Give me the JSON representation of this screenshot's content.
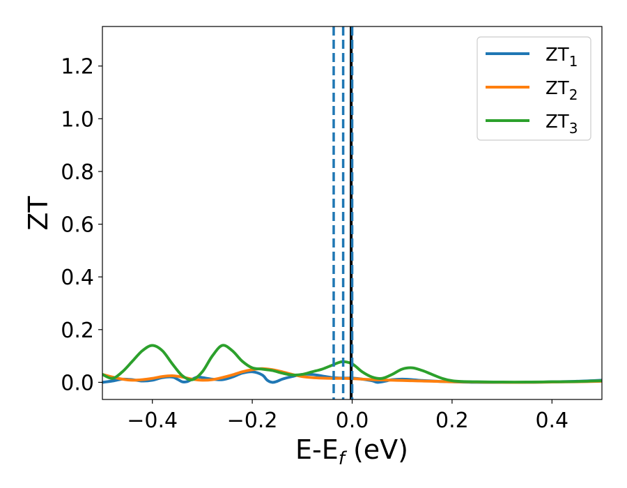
{
  "chart_data": {
    "type": "line",
    "xlabel": "E-E",
    "xlabel_sub": "f",
    "xlabel_unit": " (eV)",
    "ylabel": "ZT",
    "xlim": [
      -0.5,
      0.5
    ],
    "ylim": [
      -0.065,
      1.35
    ],
    "xticks": [
      -0.4,
      -0.2,
      0.0,
      0.2,
      0.4
    ],
    "xtick_labels": [
      "−0.4",
      "−0.2",
      "0.0",
      "0.2",
      "0.4"
    ],
    "yticks": [
      0.0,
      0.2,
      0.4,
      0.6,
      0.8,
      1.0,
      1.2
    ],
    "ytick_labels": [
      "0.0",
      "0.2",
      "0.4",
      "0.6",
      "0.8",
      "1.0",
      "1.2"
    ],
    "grid": false,
    "legend_position": "top-right",
    "series": [
      {
        "name": "ZT",
        "name_sub": "1",
        "color": "#1f77b4",
        "x": [
          -0.5,
          -0.48,
          -0.46,
          -0.44,
          -0.42,
          -0.4,
          -0.38,
          -0.36,
          -0.35,
          -0.34,
          -0.33,
          -0.32,
          -0.31,
          -0.3,
          -0.28,
          -0.26,
          -0.24,
          -0.22,
          -0.2,
          -0.18,
          -0.17,
          -0.16,
          -0.15,
          -0.14,
          -0.12,
          -0.1,
          -0.08,
          -0.06,
          -0.04,
          -0.02,
          0.0,
          0.02,
          0.04,
          0.05,
          0.06,
          0.07,
          0.08,
          0.1,
          0.12,
          0.14,
          0.16,
          0.18,
          0.2,
          0.25,
          0.3,
          0.35,
          0.4,
          0.45,
          0.5
        ],
        "y": [
          0.0,
          0.005,
          0.012,
          0.01,
          0.005,
          0.008,
          0.018,
          0.02,
          0.012,
          0.002,
          0.003,
          0.012,
          0.02,
          0.018,
          0.012,
          0.01,
          0.02,
          0.035,
          0.04,
          0.028,
          0.008,
          0.0,
          0.004,
          0.012,
          0.022,
          0.03,
          0.03,
          0.024,
          0.018,
          0.016,
          0.016,
          0.012,
          0.006,
          0.0,
          0.002,
          0.006,
          0.01,
          0.012,
          0.01,
          0.007,
          0.005,
          0.003,
          0.002,
          0.0,
          0.0,
          0.0,
          0.002,
          0.004,
          0.008
        ]
      },
      {
        "name": "ZT",
        "name_sub": "2",
        "color": "#ff7f0e",
        "x": [
          -0.5,
          -0.48,
          -0.46,
          -0.44,
          -0.42,
          -0.4,
          -0.38,
          -0.36,
          -0.34,
          -0.32,
          -0.3,
          -0.28,
          -0.26,
          -0.24,
          -0.22,
          -0.2,
          -0.18,
          -0.16,
          -0.14,
          -0.12,
          -0.1,
          -0.08,
          -0.06,
          -0.04,
          -0.02,
          0.0,
          0.02,
          0.04,
          0.06,
          0.08,
          0.1,
          0.12,
          0.14,
          0.16,
          0.18,
          0.2,
          0.25,
          0.3,
          0.35,
          0.4,
          0.45,
          0.5
        ],
        "y": [
          0.03,
          0.02,
          0.012,
          0.008,
          0.01,
          0.015,
          0.022,
          0.025,
          0.02,
          0.012,
          0.008,
          0.01,
          0.018,
          0.028,
          0.04,
          0.048,
          0.052,
          0.048,
          0.04,
          0.03,
          0.022,
          0.018,
          0.016,
          0.015,
          0.015,
          0.014,
          0.012,
          0.01,
          0.009,
          0.008,
          0.007,
          0.006,
          0.005,
          0.004,
          0.003,
          0.002,
          0.001,
          0.0,
          0.0,
          0.001,
          0.002,
          0.004
        ]
      },
      {
        "name": "ZT",
        "name_sub": "3",
        "color": "#2ca02c",
        "x": [
          -0.5,
          -0.48,
          -0.46,
          -0.44,
          -0.42,
          -0.4,
          -0.38,
          -0.36,
          -0.34,
          -0.32,
          -0.3,
          -0.28,
          -0.26,
          -0.24,
          -0.22,
          -0.2,
          -0.18,
          -0.16,
          -0.14,
          -0.12,
          -0.1,
          -0.08,
          -0.06,
          -0.04,
          -0.02,
          0.0,
          0.02,
          0.04,
          0.06,
          0.08,
          0.1,
          0.12,
          0.14,
          0.16,
          0.18,
          0.2,
          0.22,
          0.25,
          0.3,
          0.35,
          0.4,
          0.45,
          0.5
        ],
        "y": [
          0.03,
          0.015,
          0.04,
          0.08,
          0.12,
          0.14,
          0.12,
          0.07,
          0.025,
          0.01,
          0.04,
          0.1,
          0.14,
          0.12,
          0.08,
          0.055,
          0.05,
          0.045,
          0.035,
          0.028,
          0.03,
          0.04,
          0.05,
          0.065,
          0.078,
          0.07,
          0.04,
          0.02,
          0.015,
          0.03,
          0.05,
          0.055,
          0.045,
          0.03,
          0.015,
          0.006,
          0.003,
          0.002,
          0.001,
          0.001,
          0.002,
          0.003,
          0.006
        ]
      }
    ],
    "vlines": [
      {
        "x": -0.037,
        "color": "#1f77b4",
        "style": "dashed"
      },
      {
        "x": -0.018,
        "color": "#1f77b4",
        "style": "dashed"
      },
      {
        "x": -0.002,
        "color": "#000000",
        "style": "solid"
      },
      {
        "x": 0.0,
        "color": "#1f77b4",
        "style": "dashed"
      }
    ]
  }
}
